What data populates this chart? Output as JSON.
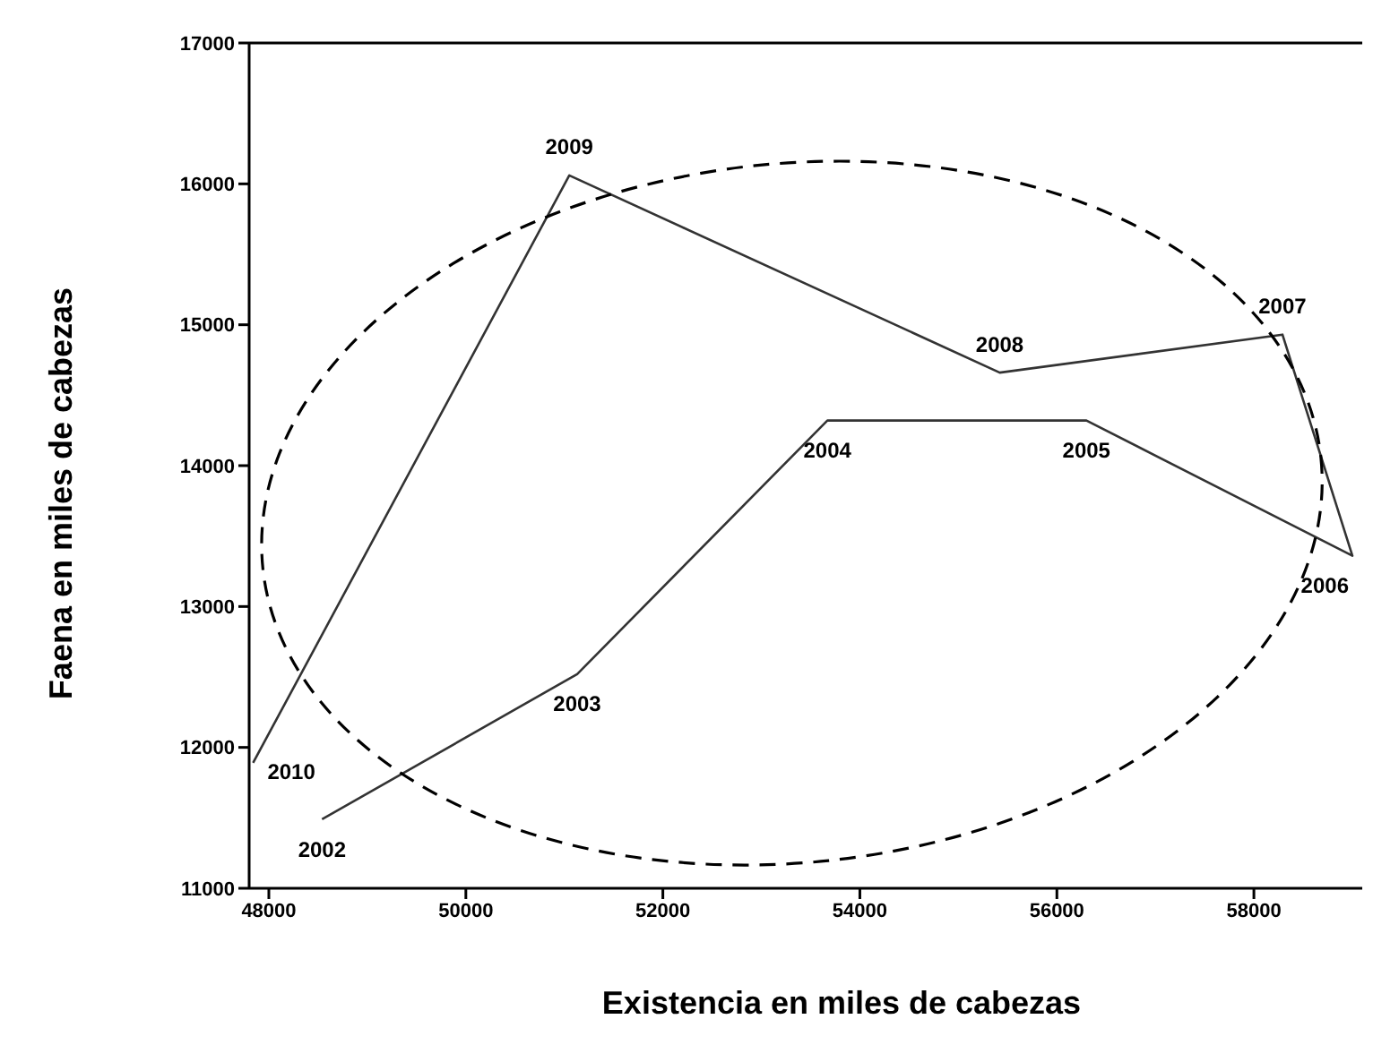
{
  "chart_data": {
    "type": "line",
    "xlabel": "Existencia en miles de cabezas",
    "ylabel": "Faena en miles de cabezas",
    "x": [
      48540,
      51130,
      53670,
      56300,
      59000,
      58290,
      55420,
      51050,
      47840
    ],
    "series": [
      {
        "color": "#333333",
        "values": [
          11490,
          12520,
          14320,
          14320,
          13360,
          14930,
          14660,
          16060,
          11890
        ]
      }
    ],
    "xlim": [
      47800,
      59100
    ],
    "xticks": [
      48000,
      50000,
      52000,
      54000,
      56000,
      58000
    ],
    "ylim": [
      11000,
      17000
    ],
    "yticks": [
      11000,
      12000,
      13000,
      14000,
      15000,
      16000,
      17000
    ],
    "grid": false,
    "legend": false,
    "marker": "none",
    "line_style": "solid",
    "annotations": [
      {
        "text": "2002",
        "x": 48540,
        "y": 11490
      },
      {
        "text": "2003",
        "x": 51130,
        "y": 12520
      },
      {
        "text": "2004",
        "x": 53670,
        "y": 14320
      },
      {
        "text": "2005",
        "x": 56300,
        "y": 14320
      },
      {
        "text": "2006",
        "x": 59000,
        "y": 13360
      },
      {
        "text": "2007",
        "x": 58290,
        "y": 14930
      },
      {
        "text": "2008",
        "x": 55420,
        "y": 14660
      },
      {
        "text": "2009",
        "x": 51050,
        "y": 16060
      },
      {
        "text": "2010",
        "x": 47840,
        "y": 11890
      }
    ]
  }
}
